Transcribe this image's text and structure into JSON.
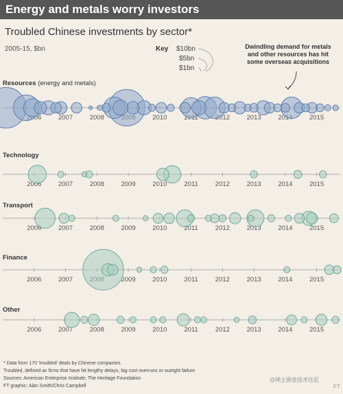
{
  "banner": "Energy and metals worry investors",
  "watermark": "@稀土掘金技术社区",
  "logo": "FT",
  "chart_data": {
    "type": "scatter",
    "title": "Troubled Chinese investments by sector*",
    "unit": "2005-15, $bn",
    "key": {
      "title": "Key",
      "sizes": [
        {
          "label": "$10bn",
          "value": 10
        },
        {
          "label": "$5bn",
          "value": 5
        },
        {
          "label": "$1bn",
          "value": 1
        }
      ]
    },
    "annotation": {
      "lines": [
        "Dwindling demand for metals",
        "and other resources has hit",
        "some overseas acquisitions"
      ]
    },
    "x_ticks": [
      "2006",
      "2007",
      "2008",
      "2009",
      "2010",
      "2011",
      "2012",
      "2013",
      "2014",
      "2015"
    ],
    "x_range": [
      2005.0,
      2015.75
    ],
    "colors": {
      "bubble_fill": "#8fa9cc",
      "bubble_stroke": "#5f7fad",
      "bubble_fill_green": "#a9cfc2",
      "bubble_stroke_green": "#6fa897",
      "axis": "#999999"
    },
    "sectors": [
      {
        "name": "Resources",
        "subtitle": " (energy and metals)",
        "color": "blue",
        "deals": [
          {
            "x": 2005.1,
            "v": 13.0
          },
          {
            "x": 2005.75,
            "v": 5.2
          },
          {
            "x": 2005.95,
            "v": 2.6
          },
          {
            "x": 2006.2,
            "v": 1.2
          },
          {
            "x": 2006.45,
            "v": 1.6
          },
          {
            "x": 2006.7,
            "v": 0.9
          },
          {
            "x": 2006.85,
            "v": 1.2
          },
          {
            "x": 2007.35,
            "v": 0.9
          },
          {
            "x": 2007.8,
            "v": 0.05
          },
          {
            "x": 2008.1,
            "v": 0.2
          },
          {
            "x": 2008.3,
            "v": 0.6
          },
          {
            "x": 2008.55,
            "v": 3.6
          },
          {
            "x": 2008.75,
            "v": 1.8
          },
          {
            "x": 2008.95,
            "v": 10.5
          },
          {
            "x": 2009.15,
            "v": 1.2
          },
          {
            "x": 2009.5,
            "v": 1.6
          },
          {
            "x": 2009.75,
            "v": 0.4
          },
          {
            "x": 2010.05,
            "v": 0.9
          },
          {
            "x": 2010.35,
            "v": 0.4
          },
          {
            "x": 2010.8,
            "v": 0.9
          },
          {
            "x": 2011.0,
            "v": 3.2
          },
          {
            "x": 2011.25,
            "v": 1.6
          },
          {
            "x": 2011.45,
            "v": 4.0
          },
          {
            "x": 2011.75,
            "v": 3.6
          },
          {
            "x": 2012.05,
            "v": 0.9
          },
          {
            "x": 2012.3,
            "v": 0.5
          },
          {
            "x": 2012.55,
            "v": 1.2
          },
          {
            "x": 2012.8,
            "v": 0.4
          },
          {
            "x": 2013.0,
            "v": 0.6
          },
          {
            "x": 2013.3,
            "v": 1.6
          },
          {
            "x": 2013.5,
            "v": 0.9
          },
          {
            "x": 2013.75,
            "v": 0.5
          },
          {
            "x": 2014.0,
            "v": 0.6
          },
          {
            "x": 2014.2,
            "v": 3.6
          },
          {
            "x": 2014.45,
            "v": 0.9
          },
          {
            "x": 2014.65,
            "v": 0.5
          },
          {
            "x": 2014.85,
            "v": 0.9
          },
          {
            "x": 2015.1,
            "v": 0.5
          },
          {
            "x": 2015.35,
            "v": 0.3
          },
          {
            "x": 2015.6,
            "v": 0.25
          }
        ]
      },
      {
        "name": "Technology",
        "subtitle": "",
        "color": "green",
        "deals": [
          {
            "x": 2006.1,
            "v": 2.6
          },
          {
            "x": 2006.85,
            "v": 0.3
          },
          {
            "x": 2007.6,
            "v": 0.2
          },
          {
            "x": 2007.75,
            "v": 0.4
          },
          {
            "x": 2010.1,
            "v": 1.2
          },
          {
            "x": 2010.4,
            "v": 2.4
          },
          {
            "x": 2013.0,
            "v": 0.4
          },
          {
            "x": 2014.4,
            "v": 0.5
          },
          {
            "x": 2015.2,
            "v": 0.4
          }
        ]
      },
      {
        "name": "Transport",
        "subtitle": "",
        "color": "green",
        "deals": [
          {
            "x": 2006.35,
            "v": 3.2
          },
          {
            "x": 2006.95,
            "v": 0.8
          },
          {
            "x": 2007.2,
            "v": 0.3
          },
          {
            "x": 2008.6,
            "v": 0.3
          },
          {
            "x": 2009.55,
            "v": 0.2
          },
          {
            "x": 2009.95,
            "v": 0.8
          },
          {
            "x": 2010.3,
            "v": 0.9
          },
          {
            "x": 2010.8,
            "v": 2.3
          },
          {
            "x": 2011.0,
            "v": 0.4
          },
          {
            "x": 2011.55,
            "v": 0.3
          },
          {
            "x": 2011.75,
            "v": 0.6
          },
          {
            "x": 2012.0,
            "v": 0.4
          },
          {
            "x": 2012.4,
            "v": 1.0
          },
          {
            "x": 2012.9,
            "v": 0.3
          },
          {
            "x": 2013.05,
            "v": 2.3
          },
          {
            "x": 2013.55,
            "v": 0.4
          },
          {
            "x": 2014.1,
            "v": 0.3
          },
          {
            "x": 2014.45,
            "v": 0.8
          },
          {
            "x": 2014.75,
            "v": 1.6
          },
          {
            "x": 2014.85,
            "v": 1.0
          },
          {
            "x": 2015.55,
            "v": 0.6
          }
        ]
      },
      {
        "name": "Finance",
        "subtitle": "",
        "color": "green",
        "deals": [
          {
            "x": 2008.2,
            "v": 13.0
          },
          {
            "x": 2008.35,
            "v": 1.2
          },
          {
            "x": 2008.5,
            "v": 0.9
          },
          {
            "x": 2009.35,
            "v": 0.2
          },
          {
            "x": 2009.8,
            "v": 0.3
          },
          {
            "x": 2010.15,
            "v": 0.4
          },
          {
            "x": 2014.05,
            "v": 0.3
          },
          {
            "x": 2015.4,
            "v": 0.7
          },
          {
            "x": 2015.65,
            "v": 0.5
          }
        ]
      },
      {
        "name": "Other",
        "subtitle": "",
        "color": "green",
        "deals": [
          {
            "x": 2007.2,
            "v": 1.8
          },
          {
            "x": 2007.6,
            "v": 0.4
          },
          {
            "x": 2007.9,
            "v": 1.0
          },
          {
            "x": 2008.75,
            "v": 0.4
          },
          {
            "x": 2009.15,
            "v": 0.3
          },
          {
            "x": 2009.8,
            "v": 0.3
          },
          {
            "x": 2010.1,
            "v": 0.3
          },
          {
            "x": 2010.75,
            "v": 1.2
          },
          {
            "x": 2011.2,
            "v": 0.3
          },
          {
            "x": 2011.4,
            "v": 0.3
          },
          {
            "x": 2012.45,
            "v": 0.2
          },
          {
            "x": 2012.95,
            "v": 0.5
          },
          {
            "x": 2014.2,
            "v": 0.8
          },
          {
            "x": 2014.6,
            "v": 0.3
          },
          {
            "x": 2015.15,
            "v": 1.0
          },
          {
            "x": 2015.6,
            "v": 0.4
          }
        ]
      }
    ],
    "footnotes": [
      "* Data from 170 'troubled' deals by Chinese companies.",
      "Troubled, defined as firms that have hit lengthy delays, big cost overruns or outright failure",
      "Sources: American Enterprise Institute; The Heritage Foundation",
      "FT graphic: Alan Smith/Chris Campbell"
    ]
  }
}
